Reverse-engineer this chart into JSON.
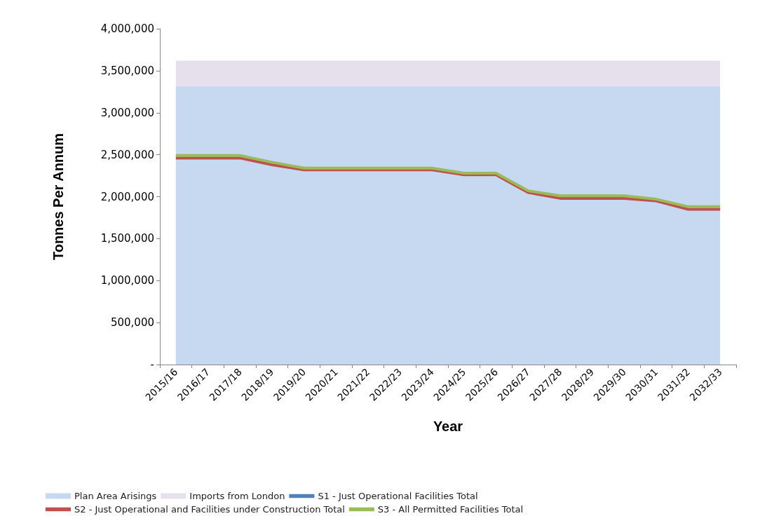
{
  "chart_data": {
    "type": "line",
    "xlabel": "Year",
    "ylabel": "Tonnes Per Annum",
    "categories": [
      "2015/16",
      "2016/17",
      "2017/18",
      "2018/19",
      "2019/20",
      "2020/21",
      "2021/22",
      "2022/23",
      "2023/24",
      "2024/25",
      "2025/26",
      "2026/27",
      "2027/28",
      "2028/29",
      "2029/30",
      "2030/31",
      "2031/32",
      "2032/33"
    ],
    "series": [
      {
        "name": "Plan Area Arisings",
        "type": "area",
        "color": "#c6d9f1",
        "values": [
          3320000,
          3320000,
          3320000,
          3320000,
          3320000,
          3320000,
          3320000,
          3320000,
          3320000,
          3320000,
          3320000,
          3320000,
          3320000,
          3320000,
          3320000,
          3320000,
          3320000,
          3320000
        ]
      },
      {
        "name": "Imports from London",
        "type": "area",
        "color": "#e6e0ec",
        "values": [
          300000,
          300000,
          300000,
          300000,
          300000,
          300000,
          300000,
          300000,
          300000,
          300000,
          300000,
          300000,
          300000,
          300000,
          300000,
          300000,
          300000,
          300000
        ]
      },
      {
        "name": "S1 - Just Operational Facilities Total",
        "type": "line",
        "color": "#4f81bd",
        "values": [
          null,
          null,
          null,
          null,
          null,
          null,
          null,
          null,
          null,
          null,
          null,
          null,
          null,
          null,
          null,
          null,
          null,
          null
        ]
      },
      {
        "name": "S2 - Just Operational and Facilities under Construction Total",
        "type": "line",
        "color": "#c0504d",
        "values": [
          2460000,
          2460000,
          2460000,
          2380000,
          2320000,
          2320000,
          2320000,
          2320000,
          2320000,
          2260000,
          2260000,
          2050000,
          1980000,
          1980000,
          1980000,
          1950000,
          1850000,
          1850000
        ]
      },
      {
        "name": "S3 - All Permitted Facilities Total",
        "type": "line",
        "color": "#9bbb59",
        "values": [
          2490000,
          2490000,
          2490000,
          2410000,
          2340000,
          2340000,
          2340000,
          2340000,
          2340000,
          2280000,
          2280000,
          2070000,
          2010000,
          2010000,
          2010000,
          1970000,
          1880000,
          1880000
        ]
      }
    ],
    "stacked": true,
    "ylim": [
      0,
      4000000
    ],
    "yticks": [
      {
        "value": 0,
        "label": "-"
      },
      {
        "value": 500000,
        "label": "500,000"
      },
      {
        "value": 1000000,
        "label": "1,000,000"
      },
      {
        "value": 1500000,
        "label": "1,500,000"
      },
      {
        "value": 2000000,
        "label": "2,000,000"
      },
      {
        "value": 2500000,
        "label": "2,500,000"
      },
      {
        "value": 3000000,
        "label": "3,000,000"
      },
      {
        "value": 3500000,
        "label": "3,500,000"
      },
      {
        "value": 4000000,
        "label": "4,000,000"
      }
    ],
    "grid": false,
    "legend": "bottom",
    "marker": "none",
    "line_style": "solid"
  }
}
